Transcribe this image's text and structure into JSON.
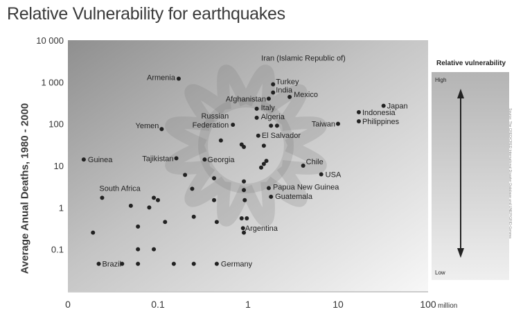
{
  "chart_data": {
    "type": "scatter",
    "title": "Relative Vulnerability for earthquakes",
    "xlabel": "",
    "x_unit": "million",
    "ylabel": "Average Anual Deaths, 1980 - 2000",
    "x_scale": "log",
    "y_scale": "log",
    "xlim": [
      0.01,
      100
    ],
    "ylim": [
      0.01,
      10000
    ],
    "x_ticks": [
      {
        "value": 0.01,
        "label": "0"
      },
      {
        "value": 0.1,
        "label": "0.1"
      },
      {
        "value": 1,
        "label": "1"
      },
      {
        "value": 10,
        "label": "10"
      },
      {
        "value": 100,
        "label": "100"
      }
    ],
    "y_ticks": [
      {
        "value": 10000,
        "label": "10 000"
      },
      {
        "value": 1000,
        "label": "1 000"
      },
      {
        "value": 100,
        "label": "100"
      },
      {
        "value": 10,
        "label": "10"
      },
      {
        "value": 1,
        "label": "1"
      },
      {
        "value": 0.1,
        "label": "0.1"
      }
    ],
    "grid": false,
    "legend": {
      "title": "Relative vulnerability",
      "high": "High",
      "low": "Low",
      "placement": "right"
    },
    "points": [
      {
        "x": 0.17,
        "y": 1200,
        "label": "Armenia"
      },
      {
        "x": 1.9,
        "y": 880,
        "label": "Turkey"
      },
      {
        "x": 1.9,
        "y": 560,
        "label": "India"
      },
      {
        "x": 2.9,
        "y": 440,
        "label": "Mexico"
      },
      {
        "x": 1.7,
        "y": 400,
        "label": "Afghanistan"
      },
      {
        "x": 1.25,
        "y": 230,
        "label": "Italy"
      },
      {
        "x": 1.25,
        "y": 140,
        "label": "Algeria"
      },
      {
        "x": 0.68,
        "y": 95,
        "label": "Russian Federation"
      },
      {
        "x": 10,
        "y": 100,
        "label": "Taiwan"
      },
      {
        "x": 17,
        "y": 190,
        "label": "Indonesia"
      },
      {
        "x": 17,
        "y": 115,
        "label": "Philippines"
      },
      {
        "x": 32,
        "y": 270,
        "label": "Japan"
      },
      {
        "x": 0.11,
        "y": 75,
        "label": "Yemen"
      },
      {
        "x": 1.3,
        "y": 52,
        "label": "El Salvador"
      },
      {
        "x": 0.015,
        "y": 14,
        "label": "Guinea"
      },
      {
        "x": 0.16,
        "y": 15,
        "label": "Tajikistan"
      },
      {
        "x": 0.33,
        "y": 14,
        "label": "Georgia"
      },
      {
        "x": 4.1,
        "y": 10,
        "label": "Chile"
      },
      {
        "x": 6.5,
        "y": 6.2,
        "label": "USA"
      },
      {
        "x": 1.7,
        "y": 2.9,
        "label": "Papua New Guinea"
      },
      {
        "x": 1.8,
        "y": 1.8,
        "label": "Guatemala"
      },
      {
        "x": 0.024,
        "y": 1.7,
        "label": "South Africa"
      },
      {
        "x": 0.88,
        "y": 0.32,
        "label": "Argentina"
      },
      {
        "x": 0.022,
        "y": 0.045,
        "label": "Brazil"
      },
      {
        "x": 0.45,
        "y": 0.045,
        "label": "Germany"
      },
      {
        "x": 1.8,
        "y": 90,
        "label": "Iran (Islamic Republic of)"
      },
      {
        "x": 2.1,
        "y": 90,
        "label": ""
      },
      {
        "x": 0.5,
        "y": 40,
        "label": ""
      },
      {
        "x": 0.85,
        "y": 32,
        "label": ""
      },
      {
        "x": 0.9,
        "y": 28,
        "label": ""
      },
      {
        "x": 1.5,
        "y": 30,
        "label": ""
      },
      {
        "x": 1.6,
        "y": 13,
        "label": ""
      },
      {
        "x": 1.5,
        "y": 11,
        "label": ""
      },
      {
        "x": 1.4,
        "y": 9,
        "label": ""
      },
      {
        "x": 0.2,
        "y": 6,
        "label": ""
      },
      {
        "x": 0.42,
        "y": 5,
        "label": ""
      },
      {
        "x": 0.9,
        "y": 4.2,
        "label": ""
      },
      {
        "x": 0.24,
        "y": 2.8,
        "label": ""
      },
      {
        "x": 0.9,
        "y": 2.6,
        "label": ""
      },
      {
        "x": 0.42,
        "y": 1.5,
        "label": ""
      },
      {
        "x": 0.92,
        "y": 1.5,
        "label": ""
      },
      {
        "x": 0.09,
        "y": 1.7,
        "label": ""
      },
      {
        "x": 0.1,
        "y": 1.5,
        "label": ""
      },
      {
        "x": 0.05,
        "y": 1.1,
        "label": ""
      },
      {
        "x": 0.08,
        "y": 1.0,
        "label": ""
      },
      {
        "x": 0.25,
        "y": 0.6,
        "label": ""
      },
      {
        "x": 0.12,
        "y": 0.45,
        "label": ""
      },
      {
        "x": 0.06,
        "y": 0.35,
        "label": ""
      },
      {
        "x": 0.85,
        "y": 0.55,
        "label": ""
      },
      {
        "x": 0.97,
        "y": 0.55,
        "label": ""
      },
      {
        "x": 0.45,
        "y": 0.45,
        "label": ""
      },
      {
        "x": 0.9,
        "y": 0.25,
        "label": ""
      },
      {
        "x": 0.019,
        "y": 0.25,
        "label": ""
      },
      {
        "x": 0.06,
        "y": 0.1,
        "label": ""
      },
      {
        "x": 0.09,
        "y": 0.1,
        "label": ""
      },
      {
        "x": 0.04,
        "y": 0.045,
        "label": ""
      },
      {
        "x": 0.06,
        "y": 0.045,
        "label": ""
      },
      {
        "x": 0.15,
        "y": 0.045,
        "label": ""
      },
      {
        "x": 0.25,
        "y": 0.045,
        "label": ""
      }
    ]
  },
  "source_note": "Source: The CRED/CRED International Disaster Database and UNEP/GRID-Geneva"
}
